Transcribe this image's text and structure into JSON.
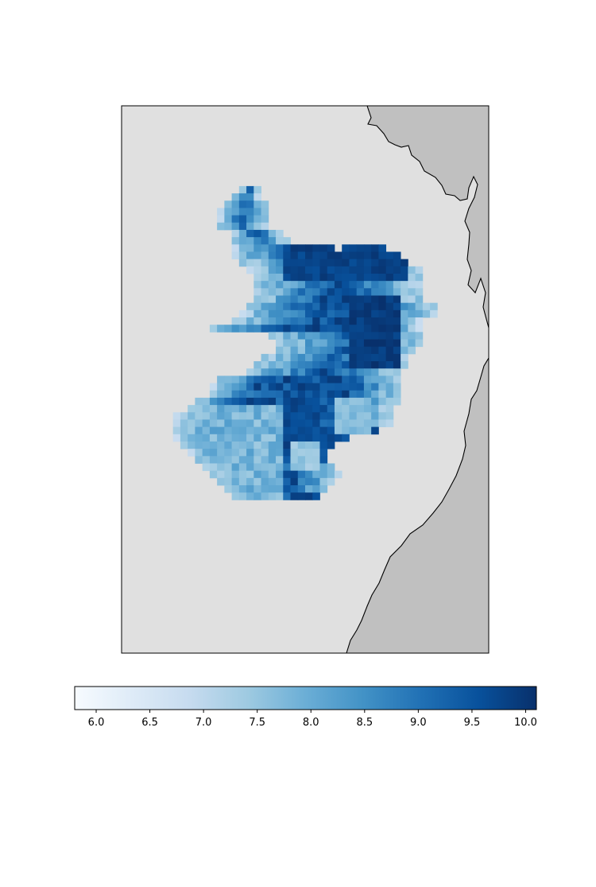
{
  "map": {
    "ocean_color": "#e0e0e0",
    "land_color": "#c0c0c0",
    "coastline_color": "#000000",
    "frame_color": "#000000",
    "colormap": "Blues",
    "cell_grid": {
      "cols": 50,
      "rows": 75
    },
    "field_rows": [
      {
        "row": 11,
        "runs": [
          [
            16,
            18,
            1
          ]
        ]
      },
      {
        "row": 12,
        "runs": [
          [
            15,
            18,
            2
          ]
        ]
      },
      {
        "row": 13,
        "runs": [
          [
            14,
            19,
            3
          ]
        ]
      },
      {
        "row": 14,
        "runs": [
          [
            13,
            19,
            4
          ]
        ]
      },
      {
        "row": 15,
        "runs": [
          [
            13,
            19,
            3
          ]
        ]
      },
      {
        "row": 16,
        "runs": [
          [
            13,
            19,
            4
          ]
        ]
      },
      {
        "row": 17,
        "runs": [
          [
            15,
            21,
            3
          ]
        ]
      },
      {
        "row": 18,
        "runs": [
          [
            15,
            22,
            5
          ]
        ]
      },
      {
        "row": 19,
        "runs": [
          [
            15,
            28,
            7
          ],
          [
            30,
            35,
            6
          ]
        ]
      },
      {
        "row": 20,
        "runs": [
          [
            15,
            37,
            8
          ]
        ]
      },
      {
        "row": 21,
        "runs": [
          [
            16,
            38,
            10
          ]
        ]
      },
      {
        "row": 22,
        "runs": [
          [
            17,
            40,
            10
          ]
        ]
      },
      {
        "row": 23,
        "runs": [
          [
            18,
            40,
            10
          ]
        ]
      },
      {
        "row": 24,
        "runs": [
          [
            18,
            40,
            11
          ]
        ]
      },
      {
        "row": 25,
        "runs": [
          [
            18,
            40,
            9
          ]
        ]
      },
      {
        "row": 26,
        "runs": [
          [
            18,
            40,
            9
          ]
        ]
      },
      {
        "row": 27,
        "runs": [
          [
            17,
            42,
            9
          ]
        ]
      },
      {
        "row": 28,
        "runs": [
          [
            16,
            42,
            10
          ]
        ]
      },
      {
        "row": 29,
        "runs": [
          [
            15,
            40,
            10
          ]
        ]
      },
      {
        "row": 30,
        "runs": [
          [
            12,
            40,
            8
          ]
        ]
      },
      {
        "row": 31,
        "runs": [
          [
            20,
            40,
            11
          ]
        ]
      },
      {
        "row": 32,
        "runs": [
          [
            21,
            40,
            11
          ]
        ]
      },
      {
        "row": 33,
        "runs": [
          [
            21,
            39,
            10
          ]
        ]
      },
      {
        "row": 34,
        "runs": [
          [
            19,
            38,
            11
          ]
        ]
      },
      {
        "row": 35,
        "runs": [
          [
            18,
            38,
            10
          ]
        ]
      },
      {
        "row": 36,
        "runs": [
          [
            17,
            37,
            10
          ]
        ]
      },
      {
        "row": 37,
        "runs": [
          [
            13,
            37,
            7
          ]
        ]
      },
      {
        "row": 38,
        "runs": [
          [
            12,
            37,
            6
          ]
        ]
      },
      {
        "row": 39,
        "runs": [
          [
            12,
            37,
            7
          ]
        ]
      },
      {
        "row": 40,
        "runs": [
          [
            10,
            37,
            6
          ]
        ]
      },
      {
        "row": 41,
        "runs": [
          [
            9,
            36,
            7
          ]
        ]
      },
      {
        "row": 42,
        "runs": [
          [
            7,
            36,
            6
          ]
        ]
      },
      {
        "row": 43,
        "runs": [
          [
            7,
            36,
            6
          ]
        ]
      },
      {
        "row": 44,
        "runs": [
          [
            7,
            34,
            5
          ]
        ]
      },
      {
        "row": 45,
        "runs": [
          [
            7,
            30,
            4
          ]
        ]
      },
      {
        "row": 46,
        "runs": [
          [
            8,
            28,
            4
          ]
        ]
      },
      {
        "row": 47,
        "runs": [
          [
            9,
            27,
            5
          ]
        ]
      },
      {
        "row": 48,
        "runs": [
          [
            10,
            27,
            5
          ]
        ]
      },
      {
        "row": 49,
        "runs": [
          [
            11,
            28,
            7
          ]
        ]
      },
      {
        "row": 50,
        "runs": [
          [
            12,
            29,
            6
          ]
        ]
      },
      {
        "row": 51,
        "runs": [
          [
            13,
            28,
            5
          ]
        ]
      },
      {
        "row": 52,
        "runs": [
          [
            14,
            27,
            4
          ]
        ]
      },
      {
        "row": 53,
        "runs": [
          [
            15,
            26,
            3
          ]
        ]
      }
    ],
    "dark_spots": [
      {
        "cols": [
          22,
          38
        ],
        "rows": [
          19,
          23
        ],
        "value": 10.0
      },
      {
        "cols": [
          31,
          37
        ],
        "rows": [
          26,
          35
        ],
        "value": 10.1
      },
      {
        "cols": [
          22,
          26
        ],
        "rows": [
          40,
          45
        ],
        "value": 9.9
      },
      {
        "cols": [
          26,
          37
        ],
        "rows": [
          44,
          48
        ],
        "value": 9.8
      },
      {
        "cols": [
          23,
          26
        ],
        "rows": [
          53,
          55
        ],
        "value": 9.9
      }
    ],
    "light_spots": [
      {
        "cols": [
          29,
          33
        ],
        "rows": [
          40,
          44
        ],
        "value": 7.4
      },
      {
        "cols": [
          23,
          26
        ],
        "rows": [
          46,
          49
        ],
        "value": 7.2
      },
      {
        "cols": [
          24,
          29
        ],
        "rows": [
          56,
          60
        ],
        "value": 6.6
      }
    ]
  },
  "colorbar": {
    "min": 5.8,
    "max": 10.1,
    "stops": [
      "#f7fbff",
      "#deebf7",
      "#c6dbef",
      "#9ecae1",
      "#6baed6",
      "#4292c6",
      "#2171b5",
      "#08519c",
      "#08306b"
    ],
    "ticks": [
      "6.0",
      "6.5",
      "7.0",
      "7.5",
      "8.0",
      "8.5",
      "9.0",
      "9.5",
      "10.0"
    ]
  }
}
